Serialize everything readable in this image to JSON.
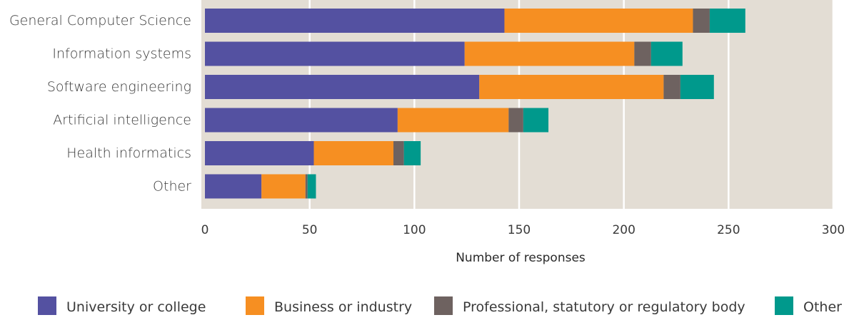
{
  "chart_data": {
    "type": "bar",
    "orientation": "horizontal",
    "stacked": true,
    "categories": [
      "General Computer Science",
      "Information systems",
      "Software engineering",
      "Artificial intelligence",
      "Health informatics",
      "Other"
    ],
    "series": [
      {
        "name": "University or college",
        "color": "#5451a1",
        "values": [
          143,
          124,
          131,
          92,
          52,
          27
        ]
      },
      {
        "name": "Business or industry",
        "color": "#f68f22",
        "values": [
          90,
          81,
          88,
          53,
          38,
          21
        ]
      },
      {
        "name": "Professional, statutory or regulatory body",
        "color": "#6e6260",
        "values": [
          8,
          8,
          8,
          7,
          5,
          1
        ]
      },
      {
        "name": "Other",
        "color": "#00998c",
        "values": [
          17,
          15,
          16,
          12,
          8,
          4
        ]
      }
    ],
    "xlabel": "Number of responses",
    "ylabel": "",
    "xlim": [
      0,
      300
    ],
    "xticks": [
      "0",
      "50",
      "100",
      "150",
      "200",
      "250",
      "300"
    ],
    "grid": true,
    "legend_position": "bottom",
    "plot_background": "#e3ddd4"
  }
}
